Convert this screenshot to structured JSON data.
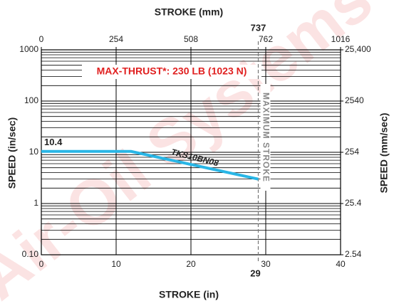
{
  "chart_data": {
    "type": "line",
    "title": "STROKE (mm)",
    "xlabel": "STROKE (in)",
    "ylabel": "SPEED (in/sec)",
    "y2label": "SPEED (mm/sec)",
    "x": [
      0,
      12,
      29
    ],
    "series": [
      {
        "name": "TKS10BN08",
        "color": "#29b6e6",
        "values": [
          10.4,
          10.4,
          3
        ]
      }
    ],
    "xlim": [
      0,
      40
    ],
    "xticks": [
      0,
      10,
      20,
      30,
      40
    ],
    "x2lim": [
      0,
      1016
    ],
    "x2ticks": [
      0,
      254,
      508,
      762,
      1016
    ],
    "ylim": [
      0.1,
      1000
    ],
    "yticks": [
      {
        "value": 0.1,
        "label": "0.10"
      },
      1,
      10,
      100,
      1000
    ],
    "y2lim": [
      2.54,
      25400
    ],
    "y2ticks": [
      2.54,
      25.4,
      254,
      2540,
      {
        "value": 25400,
        "label": "25,400"
      }
    ],
    "log_scale": true,
    "grid": true,
    "annotation": "MAX-THRUST*: 230 LB (1023 N)",
    "annotation_color": "#e02020",
    "max_stroke_in": 29,
    "max_stroke_mm": 737,
    "max_stroke_label": "MAXIMUM STROKE",
    "watermark": "Air-Oil Systems"
  }
}
